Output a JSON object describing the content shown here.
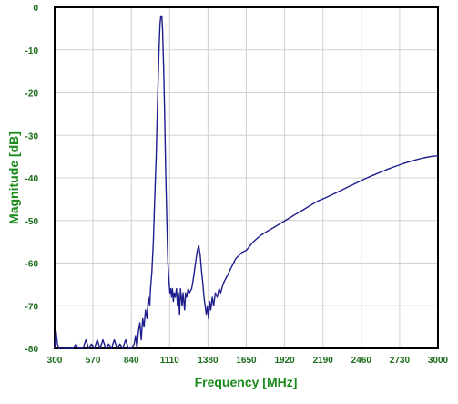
{
  "chart_data": {
    "type": "line",
    "title": "",
    "xlabel": "Frequency [MHz]",
    "ylabel": "Magnitude [dB]",
    "xlim": [
      300,
      3000
    ],
    "ylim": [
      -80,
      0
    ],
    "x_ticks": [
      300,
      570,
      840,
      1110,
      1380,
      1650,
      1920,
      2190,
      2460,
      2730,
      3000
    ],
    "x_tick_labels": [
      "300",
      "570",
      "840",
      "1110",
      "1380",
      "1650",
      "1920",
      "2190",
      "2460",
      "2730",
      "3000"
    ],
    "y_ticks": [
      0,
      -10,
      -20,
      -30,
      -40,
      -50,
      -60,
      -70,
      -80
    ],
    "y_tick_labels": [
      "0",
      "-10",
      "-20",
      "-30",
      "-40",
      "-50",
      "-60",
      "-70",
      "-80"
    ],
    "grid": true,
    "legend": "none",
    "colors": {
      "line": "#1e1e8c",
      "tick_labels": "#1a6b1a",
      "axis_titles": "#1a8a1a",
      "grid": "#d0d0d0",
      "frame": "#000000"
    },
    "series": [
      {
        "values": [
          [
            300,
            -80
          ],
          [
            310,
            -76
          ],
          [
            320,
            -79
          ],
          [
            330,
            -80
          ],
          [
            345,
            -80
          ],
          [
            360,
            -80
          ],
          [
            380,
            -80
          ],
          [
            400,
            -80
          ],
          [
            430,
            -80
          ],
          [
            450,
            -79
          ],
          [
            465,
            -80
          ],
          [
            480,
            -80
          ],
          [
            500,
            -80
          ],
          [
            520,
            -78
          ],
          [
            540,
            -80
          ],
          [
            560,
            -79
          ],
          [
            580,
            -80
          ],
          [
            600,
            -78
          ],
          [
            620,
            -80
          ],
          [
            640,
            -78
          ],
          [
            660,
            -80
          ],
          [
            680,
            -79
          ],
          [
            700,
            -80
          ],
          [
            720,
            -78
          ],
          [
            740,
            -80
          ],
          [
            760,
            -79
          ],
          [
            780,
            -80
          ],
          [
            800,
            -78
          ],
          [
            820,
            -80
          ],
          [
            840,
            -80
          ],
          [
            860,
            -79
          ],
          [
            870,
            -77
          ],
          [
            880,
            -80
          ],
          [
            890,
            -76
          ],
          [
            900,
            -74
          ],
          [
            910,
            -78
          ],
          [
            920,
            -73
          ],
          [
            930,
            -75
          ],
          [
            940,
            -71
          ],
          [
            950,
            -73
          ],
          [
            960,
            -68
          ],
          [
            970,
            -70
          ],
          [
            975,
            -66
          ],
          [
            985,
            -62
          ],
          [
            995,
            -55
          ],
          [
            1005,
            -45
          ],
          [
            1015,
            -35
          ],
          [
            1025,
            -22
          ],
          [
            1035,
            -10
          ],
          [
            1042,
            -4
          ],
          [
            1048,
            -2
          ],
          [
            1055,
            -2
          ],
          [
            1060,
            -5
          ],
          [
            1068,
            -15
          ],
          [
            1075,
            -25
          ],
          [
            1082,
            -38
          ],
          [
            1090,
            -50
          ],
          [
            1098,
            -60
          ],
          [
            1105,
            -64
          ],
          [
            1112,
            -67
          ],
          [
            1118,
            -66
          ],
          [
            1124,
            -68
          ],
          [
            1130,
            -66
          ],
          [
            1136,
            -69
          ],
          [
            1142,
            -67
          ],
          [
            1150,
            -68
          ],
          [
            1158,
            -66
          ],
          [
            1165,
            -70
          ],
          [
            1172,
            -67
          ],
          [
            1180,
            -72
          ],
          [
            1186,
            -66
          ],
          [
            1192,
            -68
          ],
          [
            1198,
            -70
          ],
          [
            1204,
            -67
          ],
          [
            1210,
            -69
          ],
          [
            1216,
            -71
          ],
          [
            1222,
            -67
          ],
          [
            1230,
            -68
          ],
          [
            1240,
            -66
          ],
          [
            1250,
            -67
          ],
          [
            1265,
            -66
          ],
          [
            1280,
            -63
          ],
          [
            1292,
            -60
          ],
          [
            1305,
            -57
          ],
          [
            1315,
            -56
          ],
          [
            1325,
            -58
          ],
          [
            1335,
            -62
          ],
          [
            1345,
            -65
          ],
          [
            1352,
            -68
          ],
          [
            1360,
            -70
          ],
          [
            1368,
            -72
          ],
          [
            1376,
            -70
          ],
          [
            1384,
            -73
          ],
          [
            1392,
            -69
          ],
          [
            1400,
            -71
          ],
          [
            1410,
            -68
          ],
          [
            1420,
            -70
          ],
          [
            1432,
            -67
          ],
          [
            1445,
            -68
          ],
          [
            1458,
            -66
          ],
          [
            1470,
            -67
          ],
          [
            1485,
            -65
          ],
          [
            1500,
            -64
          ],
          [
            1515,
            -63
          ],
          [
            1530,
            -62
          ],
          [
            1545,
            -61
          ],
          [
            1560,
            -60
          ],
          [
            1575,
            -59
          ],
          [
            1590,
            -58.5
          ],
          [
            1605,
            -58
          ],
          [
            1620,
            -57.5
          ],
          [
            1650,
            -57
          ],
          [
            1700,
            -55
          ],
          [
            1750,
            -53.5
          ],
          [
            1800,
            -52.5
          ],
          [
            1850,
            -51.5
          ],
          [
            1900,
            -50.5
          ],
          [
            1950,
            -49.5
          ],
          [
            2000,
            -48.5
          ],
          [
            2050,
            -47.5
          ],
          [
            2100,
            -46.5
          ],
          [
            2150,
            -45.5
          ],
          [
            2200,
            -44.8
          ],
          [
            2250,
            -44
          ],
          [
            2300,
            -43.2
          ],
          [
            2350,
            -42.4
          ],
          [
            2400,
            -41.6
          ],
          [
            2450,
            -40.8
          ],
          [
            2500,
            -40
          ],
          [
            2550,
            -39.3
          ],
          [
            2600,
            -38.6
          ],
          [
            2650,
            -37.9
          ],
          [
            2700,
            -37.3
          ],
          [
            2750,
            -36.7
          ],
          [
            2800,
            -36.2
          ],
          [
            2850,
            -35.7
          ],
          [
            2900,
            -35.3
          ],
          [
            2950,
            -35
          ],
          [
            3000,
            -34.8
          ]
        ]
      }
    ]
  }
}
